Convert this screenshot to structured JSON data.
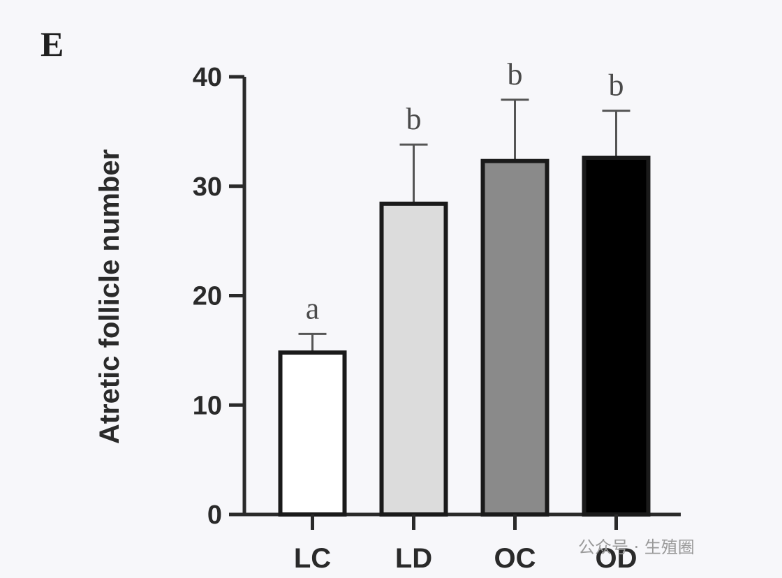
{
  "panel_label": "E",
  "watermark": "公众号 · 生殖圈",
  "chart_data": {
    "type": "bar",
    "title": "",
    "ylabel": "Atretic follicle number",
    "xlabel": "",
    "categories": [
      "LC",
      "LD",
      "OC",
      "OD"
    ],
    "values": [
      14.8,
      28.4,
      32.3,
      32.6
    ],
    "errors": [
      1.7,
      5.4,
      5.6,
      4.3
    ],
    "significance": [
      "a",
      "b",
      "b",
      "b"
    ],
    "bar_colors": [
      "#ffffff",
      "#dcdcdc",
      "#8a8a8a",
      "#000000"
    ],
    "ylim": [
      0,
      40
    ],
    "yticks": [
      0,
      10,
      20,
      30,
      40
    ],
    "grid": false
  }
}
